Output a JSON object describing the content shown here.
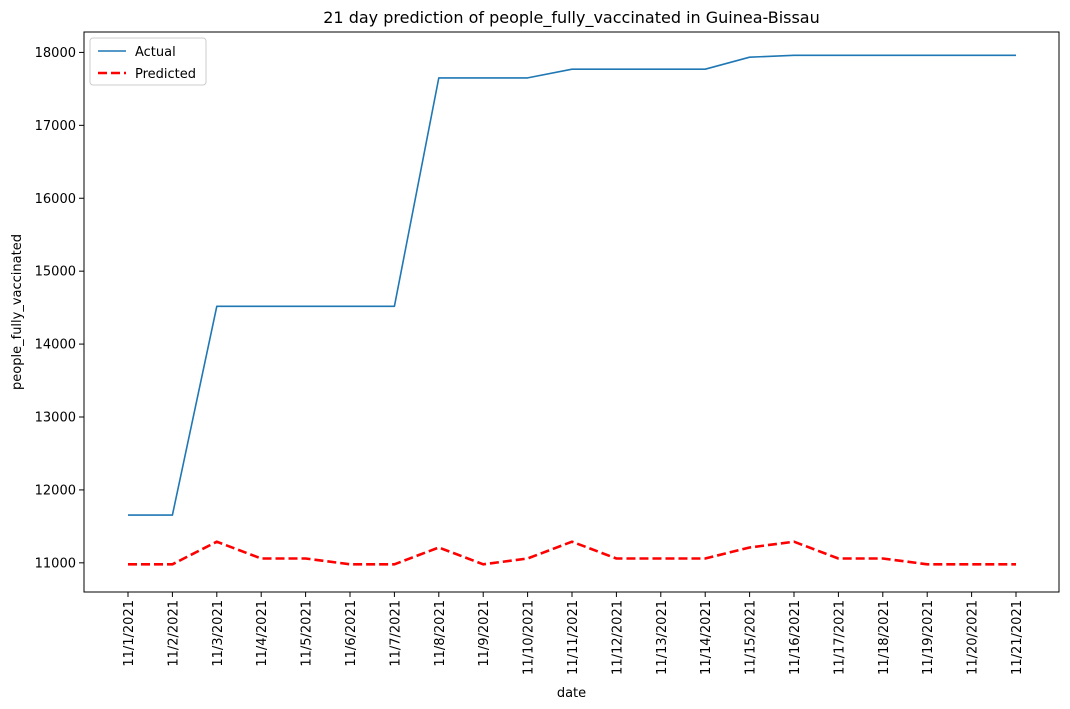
{
  "chart_data": {
    "type": "line",
    "title": "21 day prediction of people_fully_vaccinated in Guinea-Bissau",
    "xlabel": "date",
    "ylabel": "people_fully_vaccinated",
    "categories": [
      "11/1/2021",
      "11/2/2021",
      "11/3/2021",
      "11/4/2021",
      "11/5/2021",
      "11/6/2021",
      "11/7/2021",
      "11/8/2021",
      "11/9/2021",
      "11/10/2021",
      "11/11/2021",
      "11/12/2021",
      "11/13/2021",
      "11/14/2021",
      "11/15/2021",
      "11/16/2021",
      "11/17/2021",
      "11/18/2021",
      "11/19/2021",
      "11/20/2021",
      "11/21/2021"
    ],
    "ylim": [
      10600,
      18280
    ],
    "yticks": [
      11000,
      12000,
      13000,
      14000,
      15000,
      16000,
      17000,
      18000
    ],
    "grid": false,
    "legend_position": "top-left",
    "series": [
      {
        "name": "Actual",
        "color": "#1f77b4",
        "style": "solid",
        "values": [
          11654,
          11654,
          14518,
          14518,
          14518,
          14518,
          14518,
          17651,
          17651,
          17651,
          17770,
          17770,
          17770,
          17770,
          17935,
          17960,
          17960,
          17960,
          17960,
          17960,
          17960
        ]
      },
      {
        "name": "Predicted",
        "color": "#ff0000",
        "style": "dashed",
        "values": [
          10980,
          10980,
          11290,
          11060,
          11060,
          10980,
          10980,
          11210,
          10980,
          11060,
          11290,
          11060,
          11060,
          11060,
          11210,
          11290,
          11060,
          11060,
          10980,
          10980,
          10980
        ]
      }
    ]
  }
}
